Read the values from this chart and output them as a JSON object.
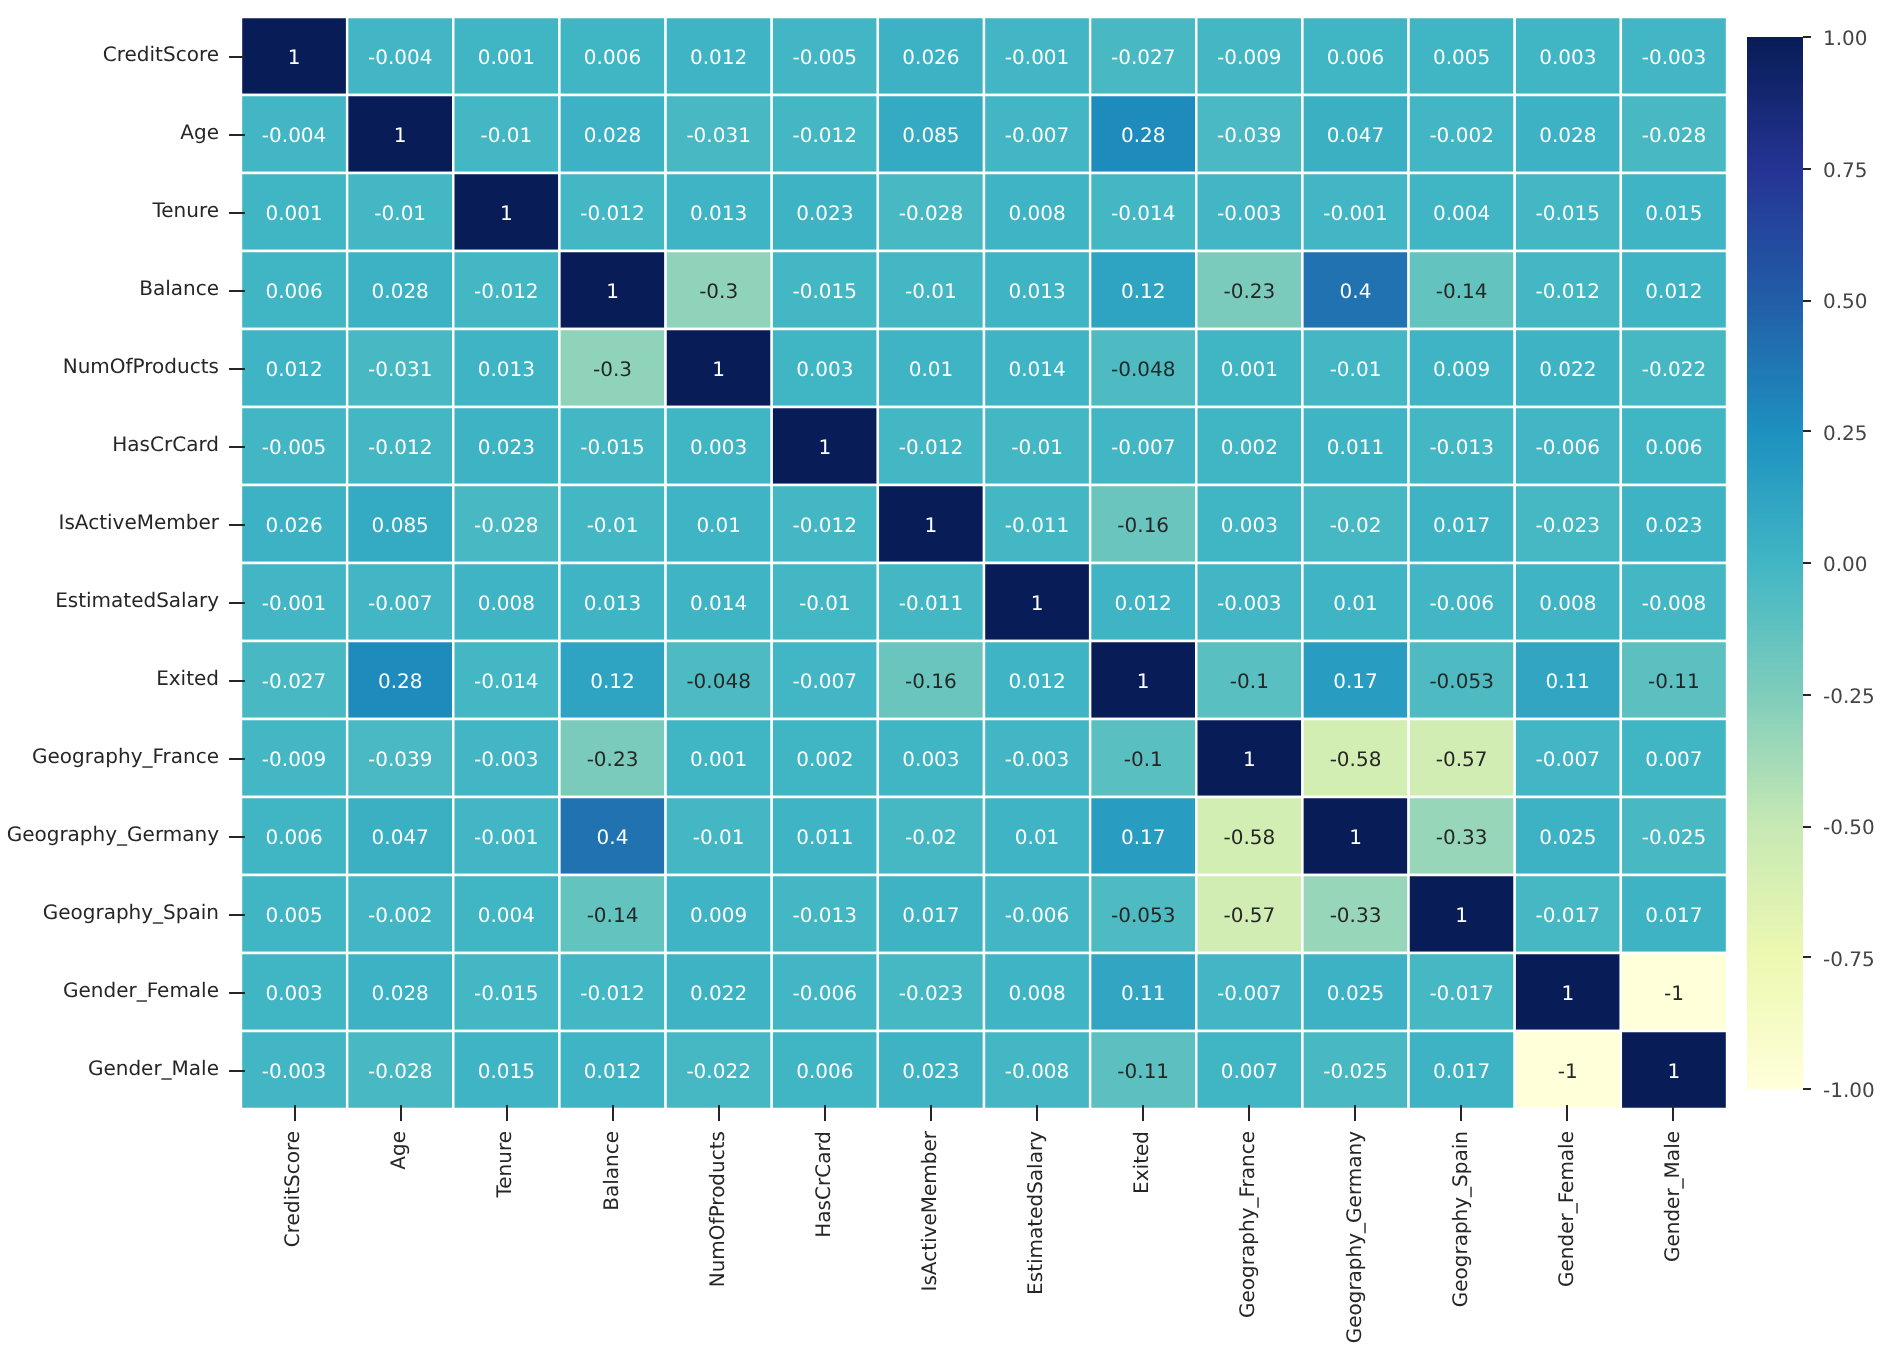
{
  "chart_data": {
    "type": "heatmap",
    "data_labels": true,
    "categories": [
      "CreditScore",
      "Age",
      "Tenure",
      "Balance",
      "NumOfProducts",
      "HasCrCard",
      "IsActiveMember",
      "EstimatedSalary",
      "Exited",
      "Geography_France",
      "Geography_Germany",
      "Geography_Spain",
      "Gender_Female",
      "Gender_Male"
    ],
    "y_categories": [
      "CreditScore",
      "Age",
      "Tenure",
      "Balance",
      "NumOfProducts",
      "HasCrCard",
      "IsActiveMember",
      "EstimatedSalary",
      "Exited",
      "Geography_France",
      "Geography_Germany",
      "Geography_Spain",
      "Gender_Female",
      "Gender_Male"
    ],
    "cells": [
      [
        1,
        -0.004,
        0.001,
        0.006,
        0.012,
        -0.005,
        0.026,
        -0.001,
        -0.027,
        -0.009,
        0.006,
        0.005,
        0.003,
        -0.003
      ],
      [
        -0.004,
        1,
        -0.01,
        0.028,
        -0.031,
        -0.012,
        0.085,
        -0.007,
        0.28,
        -0.039,
        0.047,
        -0.002,
        0.028,
        -0.028
      ],
      [
        0.001,
        -0.01,
        1,
        -0.012,
        0.013,
        0.023,
        -0.028,
        0.008,
        -0.014,
        -0.003,
        -0.001,
        0.004,
        -0.015,
        0.015
      ],
      [
        0.006,
        0.028,
        -0.012,
        1,
        -0.3,
        -0.015,
        -0.01,
        0.013,
        0.12,
        -0.23,
        0.4,
        -0.14,
        -0.012,
        0.012
      ],
      [
        0.012,
        -0.031,
        0.013,
        -0.3,
        1,
        0.003,
        0.01,
        0.014,
        -0.048,
        0.001,
        -0.01,
        0.009,
        0.022,
        -0.022
      ],
      [
        -0.005,
        -0.012,
        0.023,
        -0.015,
        0.003,
        1,
        -0.012,
        -0.01,
        -0.007,
        0.002,
        0.011,
        -0.013,
        -0.006,
        0.006
      ],
      [
        0.026,
        0.085,
        -0.028,
        -0.01,
        0.01,
        -0.012,
        1,
        -0.011,
        -0.16,
        0.003,
        -0.02,
        0.017,
        -0.023,
        0.023
      ],
      [
        -0.001,
        -0.007,
        0.008,
        0.013,
        0.014,
        -0.01,
        -0.011,
        1,
        0.012,
        -0.003,
        0.01,
        -0.006,
        0.008,
        -0.008
      ],
      [
        -0.027,
        0.28,
        -0.014,
        0.12,
        -0.048,
        -0.007,
        -0.16,
        0.012,
        1,
        -0.1,
        0.17,
        -0.053,
        0.11,
        -0.11
      ],
      [
        -0.009,
        -0.039,
        -0.003,
        -0.23,
        0.001,
        0.002,
        0.003,
        -0.003,
        -0.1,
        1,
        -0.58,
        -0.57,
        -0.007,
        0.007
      ],
      [
        0.006,
        0.047,
        -0.001,
        0.4,
        -0.01,
        0.011,
        -0.02,
        0.01,
        0.17,
        -0.58,
        1,
        -0.33,
        0.025,
        -0.025
      ],
      [
        0.005,
        -0.002,
        0.004,
        -0.14,
        0.009,
        -0.013,
        0.017,
        -0.006,
        -0.053,
        -0.57,
        -0.33,
        1,
        -0.017,
        0.017
      ],
      [
        0.003,
        0.028,
        -0.015,
        -0.012,
        0.022,
        -0.006,
        -0.023,
        0.008,
        0.11,
        -0.007,
        0.025,
        -0.017,
        1,
        -1
      ],
      [
        -0.003,
        -0.028,
        0.015,
        0.012,
        -0.022,
        0.006,
        0.023,
        -0.008,
        -0.11,
        0.007,
        -0.025,
        0.017,
        -1,
        1
      ]
    ],
    "clim": [
      -1,
      1
    ],
    "cticks": [
      {
        "value": -1,
        "label": "-1.00"
      },
      {
        "value": -0.75,
        "label": "-0.75"
      },
      {
        "value": -0.5,
        "label": "-0.50"
      },
      {
        "value": -0.25,
        "label": "-0.25"
      },
      {
        "value": 0,
        "label": "0.00"
      },
      {
        "value": 0.25,
        "label": "0.25"
      },
      {
        "value": 0.5,
        "label": "0.50"
      },
      {
        "value": 0.75,
        "label": "0.75"
      },
      {
        "value": 1,
        "label": "1.00"
      }
    ]
  }
}
